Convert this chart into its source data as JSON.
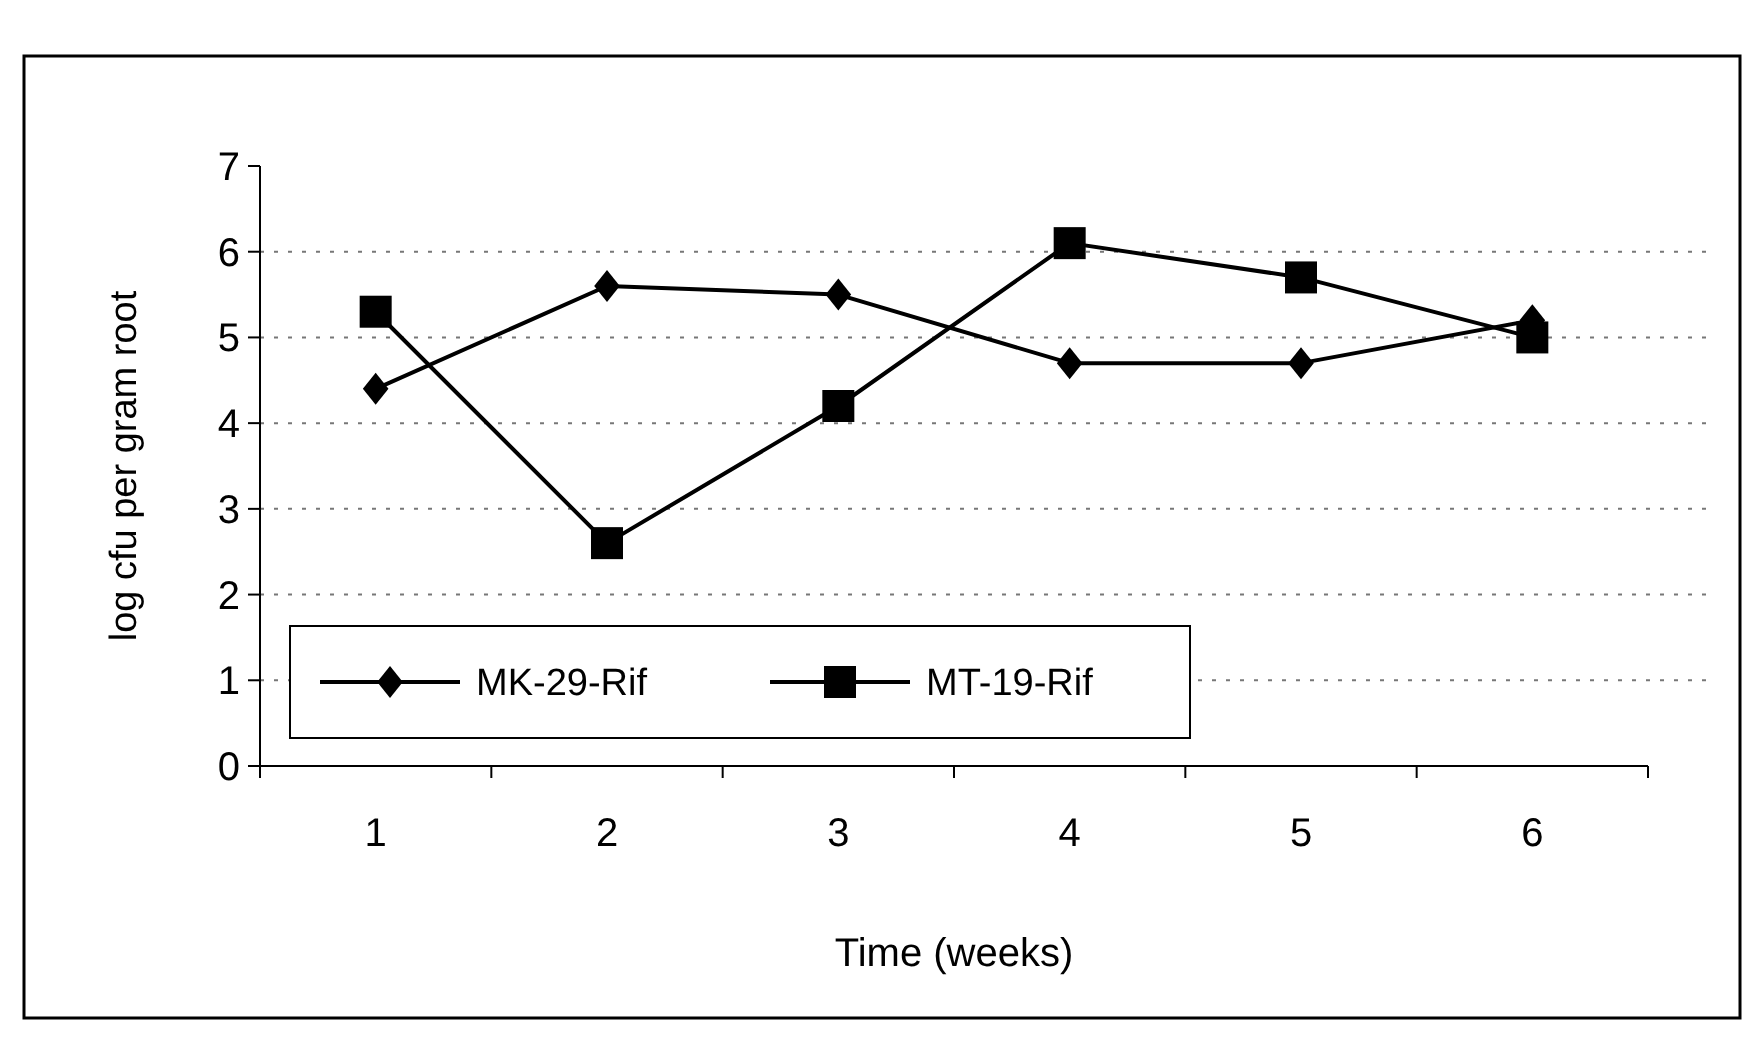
{
  "chart_data": {
    "type": "line",
    "xlabel": "Time (weeks)",
    "ylabel": "log cfu per gram root",
    "categories": [
      "1",
      "2",
      "3",
      "4",
      "5",
      "6"
    ],
    "series": [
      {
        "name": "MK-29-Rif",
        "color": "#000000",
        "marker": "diamond",
        "values": [
          4.4,
          5.6,
          5.5,
          4.7,
          4.7,
          5.2
        ]
      },
      {
        "name": "MT-19-Rif",
        "color": "#000000",
        "marker": "square",
        "values": [
          5.3,
          2.6,
          4.2,
          6.1,
          5.7,
          5.0
        ]
      }
    ],
    "ylim": [
      0,
      7
    ],
    "yticks": [
      0,
      1,
      2,
      3,
      4,
      5,
      6,
      7
    ],
    "grid": "y",
    "legend": "bottom left",
    "line_style": "solid"
  }
}
